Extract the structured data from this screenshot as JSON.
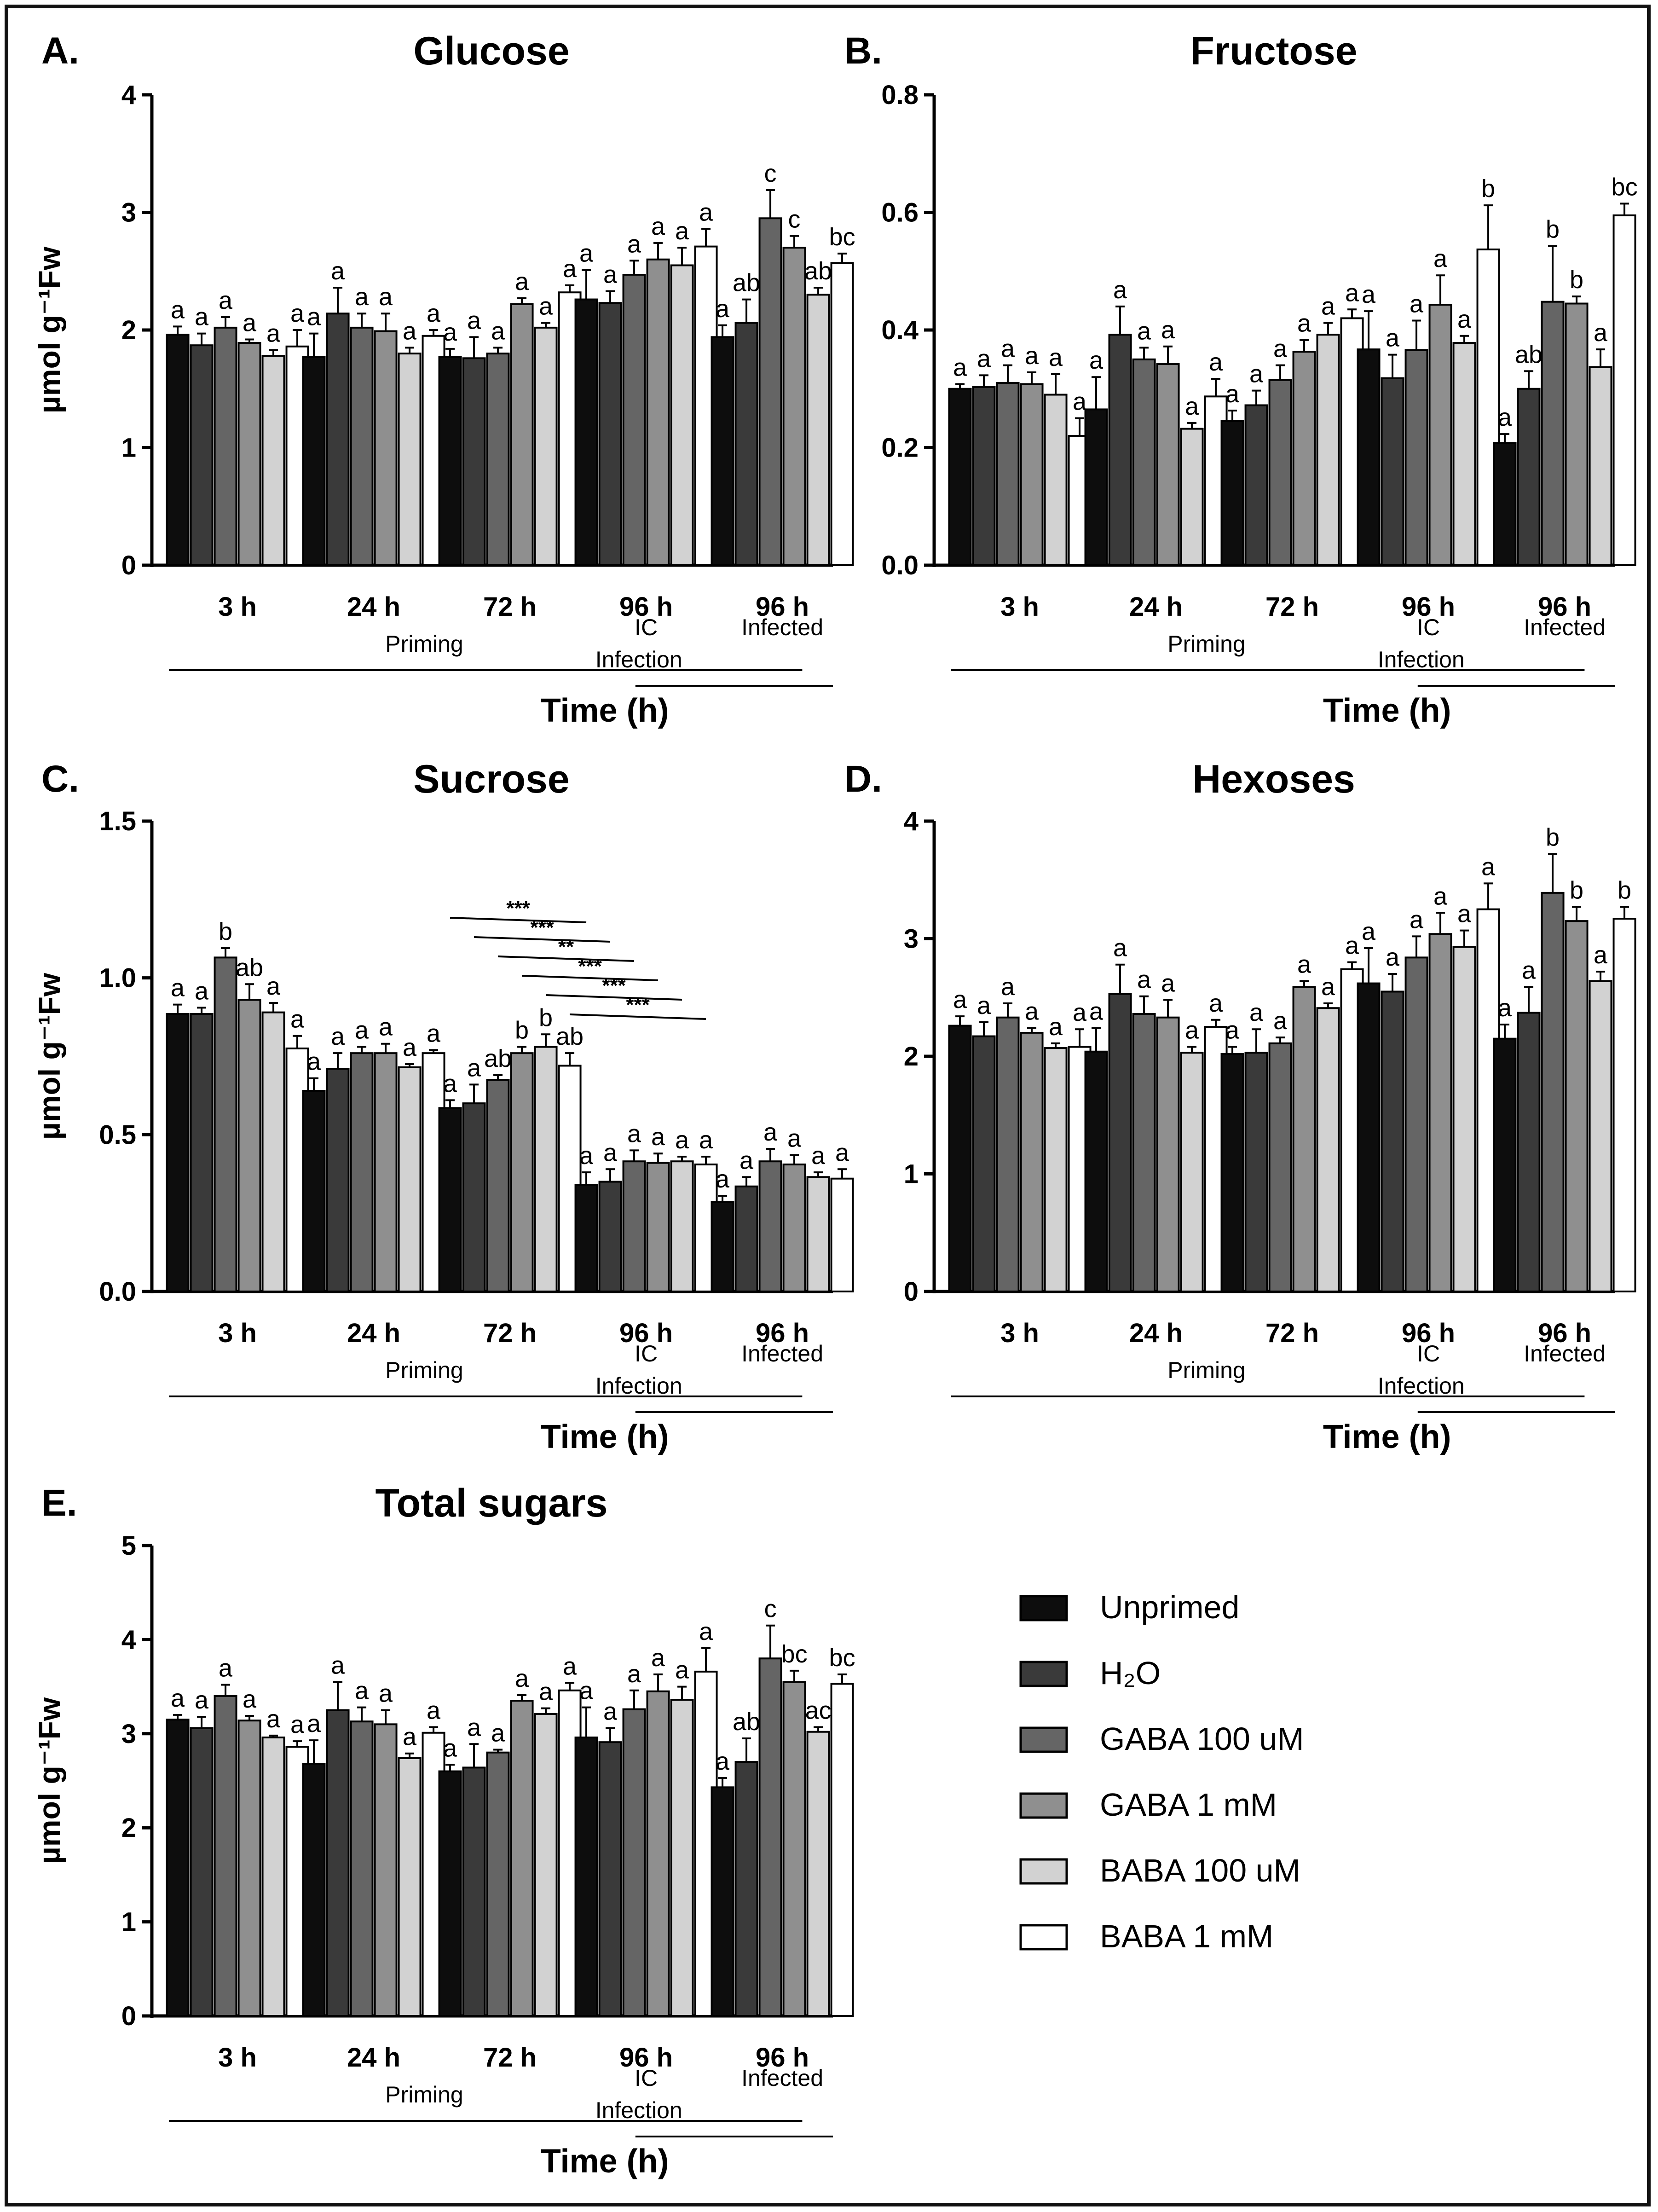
{
  "legend": {
    "entries": [
      "Unprimed",
      "H₂O",
      "GABA 100 uM",
      "GABA 1 mM",
      "BABA 100 uM",
      "BABA 1 mM"
    ],
    "fills": [
      "#0d0d0d",
      "#3a3a3a",
      "#656565",
      "#8f8f8f",
      "#d2d2d2",
      "#ffffff"
    ]
  },
  "chart_data": [
    {
      "type": "bar",
      "panel": "A.",
      "title": "Glucose",
      "ylabel": "µmol g⁻¹Fw",
      "xlabel": "Time (h)",
      "ylim": [
        0,
        4
      ],
      "yticks": [
        0,
        1,
        2,
        3,
        4
      ],
      "ytick_labels": [
        "0",
        "1",
        "2",
        "3",
        "4"
      ],
      "categories": [
        "3 h",
        "24 h",
        "72 h",
        "96 h",
        "96 h"
      ],
      "category_sublabels": [
        "",
        "",
        "",
        "IC",
        "Infected"
      ],
      "phase_labels": [
        "Priming",
        "Infection"
      ],
      "series": [
        {
          "name": "Unprimed",
          "values": [
            1.96,
            1.77,
            1.77,
            2.26,
            1.94
          ],
          "errors": [
            0.07,
            0.2,
            0.07,
            0.25,
            0.1
          ],
          "letters": [
            "a",
            "a",
            "a",
            "a",
            "a"
          ]
        },
        {
          "name": "H2O",
          "values": [
            1.87,
            2.14,
            1.76,
            2.23,
            2.06
          ],
          "errors": [
            0.1,
            0.22,
            0.18,
            0.1,
            0.2
          ],
          "letters": [
            "a",
            "a",
            "a",
            "a",
            "ab"
          ]
        },
        {
          "name": "GABA 100 uM",
          "values": [
            2.02,
            2.02,
            1.8,
            2.47,
            2.95
          ],
          "errors": [
            0.09,
            0.12,
            0.05,
            0.12,
            0.24
          ],
          "letters": [
            "a",
            "a",
            "a",
            "a",
            "c"
          ]
        },
        {
          "name": "GABA 1 mM",
          "values": [
            1.89,
            1.99,
            2.22,
            2.6,
            2.7
          ],
          "errors": [
            0.03,
            0.15,
            0.05,
            0.14,
            0.1
          ],
          "letters": [
            "a",
            "a",
            "a",
            "a",
            "c"
          ]
        },
        {
          "name": "BABA 100 uM",
          "values": [
            1.78,
            1.8,
            2.02,
            2.55,
            2.3
          ],
          "errors": [
            0.05,
            0.05,
            0.04,
            0.15,
            0.06
          ],
          "letters": [
            "a",
            "a",
            "a",
            "a",
            "ab"
          ]
        },
        {
          "name": "BABA 1 mM",
          "values": [
            1.86,
            1.95,
            2.32,
            2.71,
            2.57
          ],
          "errors": [
            0.14,
            0.05,
            0.06,
            0.15,
            0.08
          ],
          "letters": [
            "a",
            "a",
            "a",
            "a",
            "bc"
          ]
        }
      ],
      "annotations": []
    },
    {
      "type": "bar",
      "panel": "B.",
      "title": "Fructose",
      "ylabel": "",
      "xlabel": "Time (h)",
      "ylim": [
        0,
        0.8
      ],
      "yticks": [
        0,
        0.2,
        0.4,
        0.6,
        0.8
      ],
      "ytick_labels": [
        "0.0",
        "0.2",
        "0.4",
        "0.6",
        "0.8"
      ],
      "categories": [
        "3 h",
        "24 h",
        "72 h",
        "96 h",
        "96 h"
      ],
      "category_sublabels": [
        "",
        "",
        "",
        "IC",
        "Infected"
      ],
      "phase_labels": [
        "Priming",
        "Infection"
      ],
      "series": [
        {
          "name": "Unprimed",
          "values": [
            0.3,
            0.265,
            0.245,
            0.367,
            0.208
          ],
          "errors": [
            0.008,
            0.055,
            0.018,
            0.065,
            0.015
          ],
          "letters": [
            "a",
            "a",
            "a",
            "a",
            "a"
          ]
        },
        {
          "name": "H2O",
          "values": [
            0.303,
            0.392,
            0.272,
            0.318,
            0.3
          ],
          "errors": [
            0.02,
            0.048,
            0.025,
            0.04,
            0.03
          ],
          "letters": [
            "a",
            "a",
            "a",
            "a",
            "ab"
          ]
        },
        {
          "name": "GABA 100 uM",
          "values": [
            0.31,
            0.35,
            0.315,
            0.366,
            0.448
          ],
          "errors": [
            0.03,
            0.02,
            0.025,
            0.05,
            0.095
          ],
          "letters": [
            "a",
            "a",
            "a",
            "a",
            "b"
          ]
        },
        {
          "name": "GABA 1 mM",
          "values": [
            0.308,
            0.342,
            0.363,
            0.443,
            0.445
          ],
          "errors": [
            0.02,
            0.03,
            0.02,
            0.05,
            0.012
          ],
          "letters": [
            "a",
            "a",
            "a",
            "a",
            "b"
          ]
        },
        {
          "name": "BABA 100 uM",
          "values": [
            0.29,
            0.232,
            0.392,
            0.378,
            0.337
          ],
          "errors": [
            0.035,
            0.01,
            0.02,
            0.012,
            0.03
          ],
          "letters": [
            "a",
            "a",
            "a",
            "a",
            "a"
          ]
        },
        {
          "name": "BABA 1 mM",
          "values": [
            0.22,
            0.287,
            0.42,
            0.537,
            0.595
          ],
          "errors": [
            0.03,
            0.03,
            0.015,
            0.075,
            0.02
          ],
          "letters": [
            "a",
            "a",
            "a",
            "b",
            "bc"
          ]
        }
      ],
      "annotations": []
    },
    {
      "type": "bar",
      "panel": "C.",
      "title": "Sucrose",
      "ylabel": "µmol g⁻¹Fw",
      "xlabel": "Time (h)",
      "ylim": [
        0,
        1.5
      ],
      "yticks": [
        0,
        0.5,
        1.0,
        1.5
      ],
      "ytick_labels": [
        "0.0",
        "0.5",
        "1.0",
        "1.5"
      ],
      "categories": [
        "3 h",
        "24 h",
        "72 h",
        "96 h",
        "96 h"
      ],
      "category_sublabels": [
        "",
        "",
        "",
        "IC",
        "Infected"
      ],
      "phase_labels": [
        "Priming",
        "Infection"
      ],
      "series": [
        {
          "name": "Unprimed",
          "values": [
            0.885,
            0.64,
            0.585,
            0.34,
            0.285
          ],
          "errors": [
            0.03,
            0.04,
            0.025,
            0.04,
            0.02
          ],
          "letters": [
            "a",
            "a",
            "a",
            "a",
            "a"
          ]
        },
        {
          "name": "H2O",
          "values": [
            0.885,
            0.71,
            0.6,
            0.35,
            0.335
          ],
          "errors": [
            0.02,
            0.05,
            0.06,
            0.04,
            0.03
          ],
          "letters": [
            "a",
            "a",
            "a",
            "a",
            "a"
          ]
        },
        {
          "name": "GABA 100 uM",
          "values": [
            1.065,
            0.76,
            0.675,
            0.415,
            0.415
          ],
          "errors": [
            0.03,
            0.02,
            0.015,
            0.035,
            0.04
          ],
          "letters": [
            "b",
            "a",
            "ab",
            "a",
            "a"
          ]
        },
        {
          "name": "GABA 1 mM",
          "values": [
            0.93,
            0.76,
            0.76,
            0.41,
            0.405
          ],
          "errors": [
            0.05,
            0.03,
            0.02,
            0.03,
            0.03
          ],
          "letters": [
            "ab",
            "a",
            "b",
            "a",
            "a"
          ]
        },
        {
          "name": "BABA 100 uM",
          "values": [
            0.89,
            0.715,
            0.78,
            0.415,
            0.365
          ],
          "errors": [
            0.03,
            0.01,
            0.04,
            0.015,
            0.015
          ],
          "letters": [
            "a",
            "a",
            "b",
            "a",
            "a"
          ]
        },
        {
          "name": "BABA 1 mM",
          "values": [
            0.775,
            0.76,
            0.72,
            0.405,
            0.36
          ],
          "errors": [
            0.04,
            0.01,
            0.04,
            0.025,
            0.03
          ],
          "letters": [
            "a",
            "a",
            "ab",
            "a",
            "a"
          ]
        }
      ],
      "annotations": [
        {
          "label": "***",
          "from_bar": "72 h / Unprimed",
          "to_bar": "96 h IC / Unprimed"
        },
        {
          "label": "***",
          "from_bar": "72 h / H2O",
          "to_bar": "96 h IC / H2O"
        },
        {
          "label": "**",
          "from_bar": "72 h / GABA 100 uM",
          "to_bar": "96 h IC / GABA 100 uM"
        },
        {
          "label": "***",
          "from_bar": "72 h / GABA 1 mM",
          "to_bar": "96 h IC / GABA 1 mM"
        },
        {
          "label": "***",
          "from_bar": "72 h / BABA 100 uM",
          "to_bar": "96 h IC / BABA 100 uM"
        },
        {
          "label": "***",
          "from_bar": "72 h / BABA 1 mM",
          "to_bar": "96 h IC / BABA 1 mM"
        }
      ]
    },
    {
      "type": "bar",
      "panel": "D.",
      "title": "Hexoses",
      "ylabel": "",
      "xlabel": "Time (h)",
      "ylim": [
        0,
        4
      ],
      "yticks": [
        0,
        1,
        2,
        3,
        4
      ],
      "ytick_labels": [
        "0",
        "1",
        "2",
        "3",
        "4"
      ],
      "categories": [
        "3 h",
        "24 h",
        "72 h",
        "96 h",
        "96 h"
      ],
      "category_sublabels": [
        "",
        "",
        "",
        "IC",
        "Infected"
      ],
      "phase_labels": [
        "Priming",
        "Infection"
      ],
      "series": [
        {
          "name": "Unprimed",
          "values": [
            2.26,
            2.04,
            2.02,
            2.62,
            2.15
          ],
          "errors": [
            0.08,
            0.2,
            0.06,
            0.3,
            0.12
          ],
          "letters": [
            "a",
            "a",
            "a",
            "a",
            "a"
          ]
        },
        {
          "name": "H2O",
          "values": [
            2.17,
            2.53,
            2.03,
            2.55,
            2.37
          ],
          "errors": [
            0.12,
            0.25,
            0.2,
            0.15,
            0.22
          ],
          "letters": [
            "a",
            "a",
            "a",
            "a",
            "a"
          ]
        },
        {
          "name": "GABA 100 uM",
          "values": [
            2.33,
            2.36,
            2.11,
            2.84,
            3.39
          ],
          "errors": [
            0.12,
            0.15,
            0.05,
            0.18,
            0.33
          ],
          "letters": [
            "a",
            "a",
            "a",
            "a",
            "b"
          ]
        },
        {
          "name": "GABA 1 mM",
          "values": [
            2.2,
            2.33,
            2.59,
            3.04,
            3.15
          ],
          "errors": [
            0.04,
            0.15,
            0.05,
            0.18,
            0.12
          ],
          "letters": [
            "a",
            "a",
            "a",
            "a",
            "b"
          ]
        },
        {
          "name": "BABA 100 uM",
          "values": [
            2.07,
            2.03,
            2.41,
            2.93,
            2.64
          ],
          "errors": [
            0.04,
            0.05,
            0.04,
            0.14,
            0.08
          ],
          "letters": [
            "a",
            "a",
            "a",
            "a",
            "a"
          ]
        },
        {
          "name": "BABA 1 mM",
          "values": [
            2.08,
            2.25,
            2.74,
            3.25,
            3.17
          ],
          "errors": [
            0.15,
            0.06,
            0.06,
            0.22,
            0.1
          ],
          "letters": [
            "a",
            "a",
            "a",
            "a",
            "b"
          ]
        }
      ],
      "annotations": []
    },
    {
      "type": "bar",
      "panel": "E.",
      "title": "Total sugars",
      "ylabel": "µmol g⁻¹Fw",
      "xlabel": "Time (h)",
      "ylim": [
        0,
        5
      ],
      "yticks": [
        0,
        1,
        2,
        3,
        4,
        5
      ],
      "ytick_labels": [
        "0",
        "1",
        "2",
        "3",
        "4",
        "5"
      ],
      "categories": [
        "3 h",
        "24 h",
        "72 h",
        "96 h",
        "96 h"
      ],
      "category_sublabels": [
        "",
        "",
        "",
        "IC",
        "Infected"
      ],
      "phase_labels": [
        "Priming",
        "Infection"
      ],
      "series": [
        {
          "name": "Unprimed",
          "values": [
            3.15,
            2.68,
            2.6,
            2.96,
            2.43
          ],
          "errors": [
            0.05,
            0.25,
            0.07,
            0.32,
            0.1
          ],
          "letters": [
            "a",
            "a",
            "a",
            "a",
            "a"
          ]
        },
        {
          "name": "H2O",
          "values": [
            3.06,
            3.25,
            2.64,
            2.91,
            2.7
          ],
          "errors": [
            0.12,
            0.3,
            0.25,
            0.15,
            0.25
          ],
          "letters": [
            "a",
            "a",
            "a",
            "a",
            "ab"
          ]
        },
        {
          "name": "GABA 100 uM",
          "values": [
            3.4,
            3.13,
            2.8,
            3.26,
            3.8
          ],
          "errors": [
            0.12,
            0.15,
            0.03,
            0.2,
            0.35
          ],
          "letters": [
            "a",
            "a",
            "a",
            "a",
            "c"
          ]
        },
        {
          "name": "GABA 1 mM",
          "values": [
            3.14,
            3.1,
            3.35,
            3.45,
            3.55
          ],
          "errors": [
            0.05,
            0.15,
            0.06,
            0.18,
            0.12
          ],
          "letters": [
            "a",
            "a",
            "a",
            "a",
            "bc"
          ]
        },
        {
          "name": "BABA 100 uM",
          "values": [
            2.96,
            2.74,
            3.21,
            3.36,
            3.02
          ],
          "errors": [
            0.02,
            0.05,
            0.06,
            0.14,
            0.05
          ],
          "letters": [
            "a",
            "a",
            "a",
            "a",
            "ac"
          ]
        },
        {
          "name": "BABA 1 mM",
          "values": [
            2.86,
            3.01,
            3.46,
            3.66,
            3.53
          ],
          "errors": [
            0.06,
            0.06,
            0.08,
            0.25,
            0.1
          ],
          "letters": [
            "a",
            "a",
            "a",
            "a",
            "bc"
          ]
        }
      ],
      "annotations": []
    }
  ]
}
